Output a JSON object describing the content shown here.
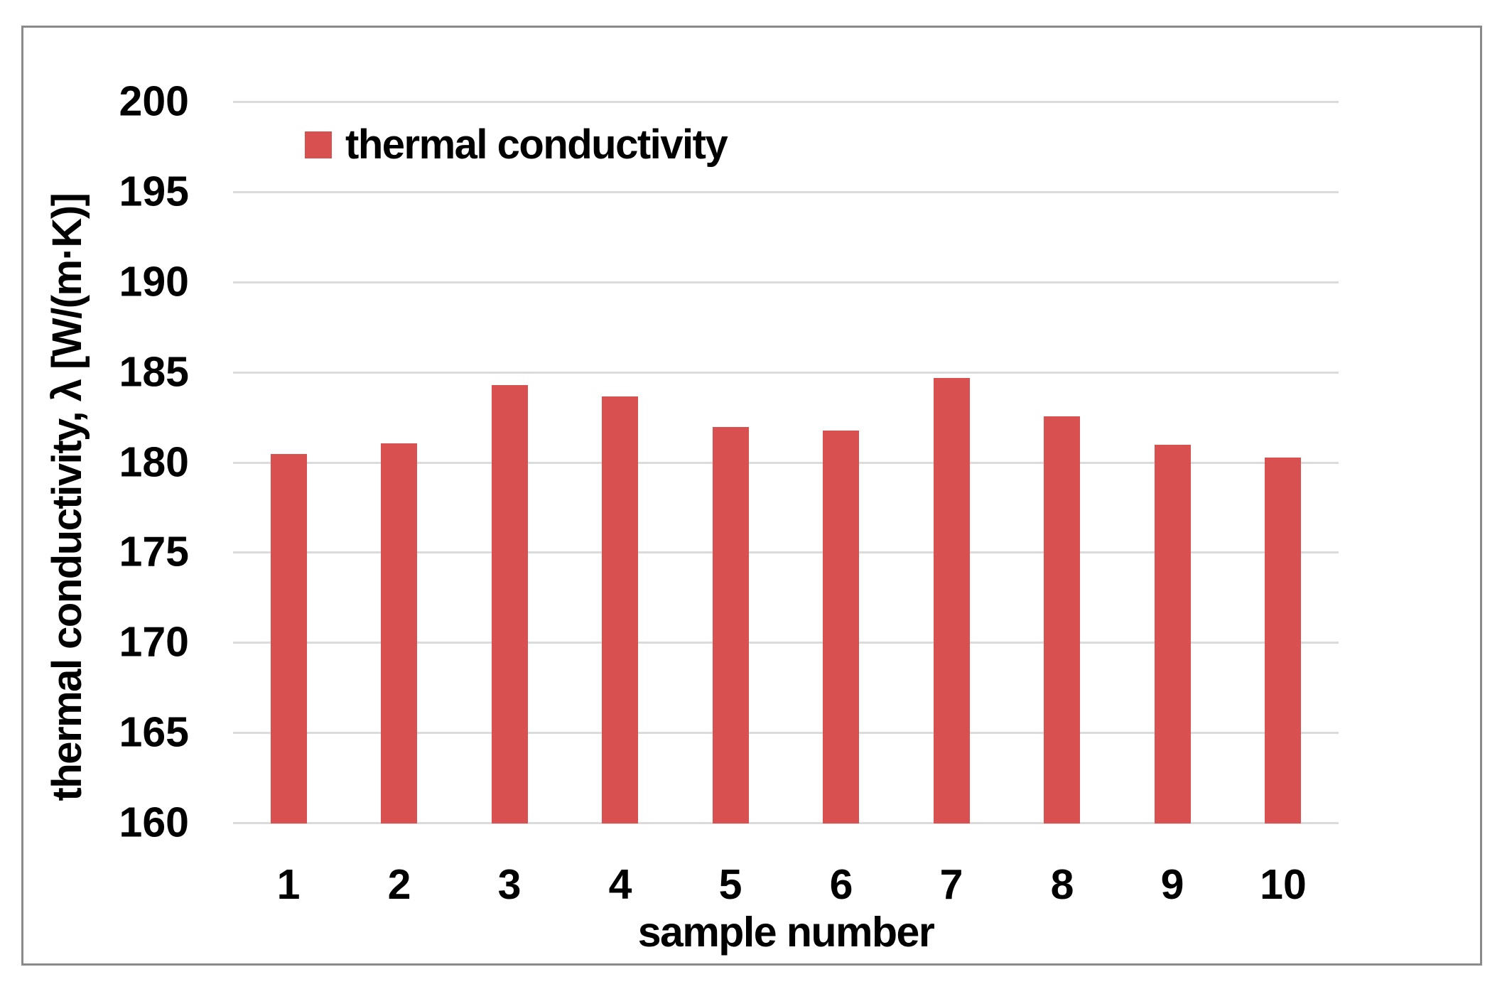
{
  "figure": {
    "background_color": "#FFFFFF",
    "frame_border_color": "#8A8A8A"
  },
  "legend": {
    "label": "thermal conductivity",
    "swatch_color": "#D95050"
  },
  "axes": {
    "x_title": "sample number",
    "y_title": "thermal conductivity, λ [W/(m·K)]",
    "y_tick_labels": [
      "200",
      "195",
      "190",
      "185",
      "180",
      "175",
      "170",
      "165",
      "160"
    ],
    "x_tick_labels": [
      "1",
      "2",
      "3",
      "4",
      "5",
      "6",
      "7",
      "8",
      "9",
      "10"
    ]
  },
  "chart_data": {
    "type": "bar",
    "title": "",
    "categories": [
      "1",
      "2",
      "3",
      "4",
      "5",
      "6",
      "7",
      "8",
      "9",
      "10"
    ],
    "series": [
      {
        "name": "thermal conductivity",
        "values": [
          180.5,
          181.1,
          184.3,
          183.7,
          182.0,
          181.8,
          184.7,
          182.6,
          181.0,
          180.3
        ]
      }
    ],
    "xlabel": "sample number",
    "ylabel": "thermal conductivity, λ [W/(m·K)]",
    "ylim": [
      160,
      200
    ],
    "ytick_step": 5,
    "grid": true,
    "gridline_color": "#DBDBDB",
    "bar_color": "#D95050",
    "legend_position": "top-left-inside"
  }
}
